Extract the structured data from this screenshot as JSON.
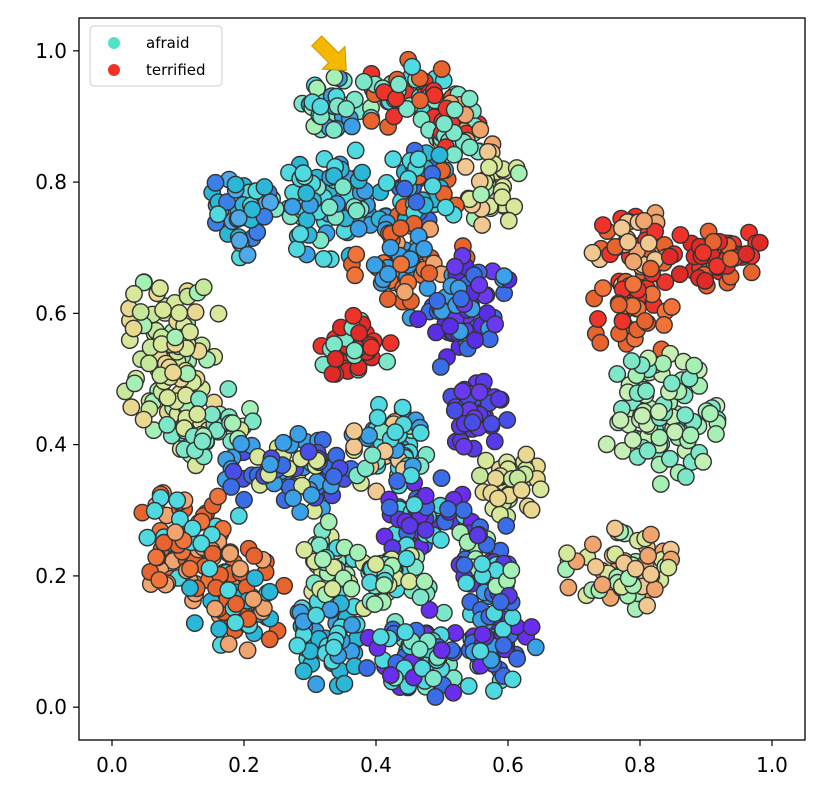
{
  "chart_data": {
    "type": "scatter",
    "title": "",
    "xlabel": "",
    "ylabel": "",
    "xlim": [
      -0.05,
      1.05
    ],
    "ylim": [
      -0.05,
      1.05
    ],
    "xticks": [
      0.0,
      0.2,
      0.4,
      0.6,
      0.8,
      1.0
    ],
    "yticks": [
      0.0,
      0.2,
      0.4,
      0.6,
      0.8,
      1.0
    ],
    "xtick_labels": [
      "0.0",
      "0.2",
      "0.4",
      "0.6",
      "0.8",
      "1.0"
    ],
    "ytick_labels": [
      "0.0",
      "0.2",
      "0.4",
      "0.6",
      "0.8",
      "1.0"
    ],
    "grid": false,
    "legend": {
      "placement": "top-left",
      "entries": [
        {
          "label": "afraid",
          "color": "#4fe3c6"
        },
        {
          "label": "terrified",
          "color": "#f0332a"
        }
      ]
    },
    "annotation": {
      "type": "arrow",
      "color": "#f5b800",
      "points_to": [
        0.355,
        0.97
      ]
    },
    "marker_edge_color": "#333333",
    "clusters": [
      {
        "cx": 0.33,
        "cy": 0.91,
        "rx": 0.05,
        "ry": 0.04,
        "n": 45,
        "colors": [
          "#4fd9e0",
          "#7de8c9",
          "#3aa0e8",
          "#a5f0b5"
        ]
      },
      {
        "cx": 0.45,
        "cy": 0.93,
        "rx": 0.06,
        "ry": 0.045,
        "n": 55,
        "colors": [
          "#f0332a",
          "#e8642e",
          "#7de8c9",
          "#4fd9e0"
        ]
      },
      {
        "cx": 0.53,
        "cy": 0.88,
        "rx": 0.04,
        "ry": 0.05,
        "n": 45,
        "colors": [
          "#f0332a",
          "#f0a46e",
          "#7de8c9"
        ]
      },
      {
        "cx": 0.57,
        "cy": 0.79,
        "rx": 0.04,
        "ry": 0.05,
        "n": 40,
        "colors": [
          "#d7e89a",
          "#a5f0b5",
          "#f0c890"
        ]
      },
      {
        "cx": 0.33,
        "cy": 0.77,
        "rx": 0.07,
        "ry": 0.07,
        "n": 90,
        "colors": [
          "#4fd9e0",
          "#3aa0e8",
          "#7de8c9",
          "#2bb8d8"
        ]
      },
      {
        "cx": 0.46,
        "cy": 0.78,
        "rx": 0.05,
        "ry": 0.06,
        "n": 55,
        "colors": [
          "#3a6ee8",
          "#4fd9e0",
          "#2bb8d8",
          "#e8642e"
        ]
      },
      {
        "cx": 0.19,
        "cy": 0.76,
        "rx": 0.04,
        "ry": 0.06,
        "n": 45,
        "colors": [
          "#3a80e8",
          "#4fa8e8",
          "#2bb8d8",
          "#4fd9e0"
        ]
      },
      {
        "cx": 0.45,
        "cy": 0.68,
        "rx": 0.07,
        "ry": 0.05,
        "n": 60,
        "colors": [
          "#f0733a",
          "#e8642e",
          "#f0a46e",
          "#3aa0e8"
        ]
      },
      {
        "cx": 0.53,
        "cy": 0.6,
        "rx": 0.07,
        "ry": 0.07,
        "n": 75,
        "colors": [
          "#5a2ee8",
          "#3a6ee8",
          "#6a3af0",
          "#3aa0e8"
        ]
      },
      {
        "cx": 0.79,
        "cy": 0.7,
        "rx": 0.05,
        "ry": 0.05,
        "n": 50,
        "colors": [
          "#f0c890",
          "#f0a46e",
          "#e8642e",
          "#f0332a"
        ]
      },
      {
        "cx": 0.92,
        "cy": 0.69,
        "rx": 0.06,
        "ry": 0.04,
        "n": 45,
        "colors": [
          "#f0332a",
          "#e02a28",
          "#e8642e"
        ]
      },
      {
        "cx": 0.79,
        "cy": 0.6,
        "rx": 0.05,
        "ry": 0.06,
        "n": 45,
        "colors": [
          "#e8642e",
          "#f0332a",
          "#f0733a"
        ]
      },
      {
        "cx": 0.09,
        "cy": 0.54,
        "rx": 0.065,
        "ry": 0.1,
        "n": 110,
        "colors": [
          "#d7e89a",
          "#c5e89a",
          "#a5f0b5",
          "#e8d890"
        ]
      },
      {
        "cx": 0.14,
        "cy": 0.43,
        "rx": 0.06,
        "ry": 0.05,
        "n": 50,
        "colors": [
          "#a5f0b5",
          "#d7e89a",
          "#7de8c9"
        ]
      },
      {
        "cx": 0.36,
        "cy": 0.55,
        "rx": 0.05,
        "ry": 0.045,
        "n": 50,
        "colors": [
          "#f0332a",
          "#e02a28",
          "#7de8c9"
        ]
      },
      {
        "cx": 0.55,
        "cy": 0.45,
        "rx": 0.04,
        "ry": 0.045,
        "n": 45,
        "colors": [
          "#5a3ae8",
          "#4a4ee8",
          "#6a3af0"
        ]
      },
      {
        "cx": 0.83,
        "cy": 0.44,
        "rx": 0.07,
        "ry": 0.08,
        "n": 95,
        "colors": [
          "#a5f0b5",
          "#7de8c9",
          "#c5f0b5"
        ]
      },
      {
        "cx": 0.28,
        "cy": 0.36,
        "rx": 0.09,
        "ry": 0.05,
        "n": 80,
        "colors": [
          "#3a6ee8",
          "#4a4ee8",
          "#d7e89a",
          "#3aa0e8"
        ]
      },
      {
        "cx": 0.42,
        "cy": 0.4,
        "rx": 0.05,
        "ry": 0.06,
        "n": 55,
        "colors": [
          "#4fd9e0",
          "#7de8c9",
          "#3aa0e8",
          "#f0c890"
        ]
      },
      {
        "cx": 0.47,
        "cy": 0.28,
        "rx": 0.06,
        "ry": 0.06,
        "n": 65,
        "colors": [
          "#6a2ef0",
          "#5a3ae8",
          "#4fd9e0",
          "#3a6ee8"
        ]
      },
      {
        "cx": 0.6,
        "cy": 0.34,
        "rx": 0.04,
        "ry": 0.045,
        "n": 40,
        "colors": [
          "#d7e89a",
          "#e8d890",
          "#c5e89a"
        ]
      },
      {
        "cx": 0.12,
        "cy": 0.25,
        "rx": 0.07,
        "ry": 0.07,
        "n": 85,
        "colors": [
          "#f0a46e",
          "#f0733a",
          "#4fd9e0",
          "#e8642e"
        ]
      },
      {
        "cx": 0.19,
        "cy": 0.16,
        "rx": 0.06,
        "ry": 0.06,
        "n": 60,
        "colors": [
          "#f0a46e",
          "#e8642e",
          "#4fd9e0",
          "#2bb8d8"
        ]
      },
      {
        "cx": 0.33,
        "cy": 0.22,
        "rx": 0.045,
        "ry": 0.05,
        "n": 40,
        "colors": [
          "#a5f0b5",
          "#d7e89a",
          "#7de8c9",
          "#4fd9e0"
        ]
      },
      {
        "cx": 0.33,
        "cy": 0.1,
        "rx": 0.05,
        "ry": 0.055,
        "n": 55,
        "colors": [
          "#2bb8d8",
          "#4fd9e0",
          "#3aa0e8"
        ]
      },
      {
        "cx": 0.47,
        "cy": 0.08,
        "rx": 0.07,
        "ry": 0.055,
        "n": 75,
        "colors": [
          "#4fd9e0",
          "#3a6ee8",
          "#7de8c9",
          "#6a2ef0"
        ]
      },
      {
        "cx": 0.58,
        "cy": 0.1,
        "rx": 0.05,
        "ry": 0.07,
        "n": 65,
        "colors": [
          "#3aa0e8",
          "#6a2ef0",
          "#4fd9e0",
          "#3a6ee8"
        ]
      },
      {
        "cx": 0.42,
        "cy": 0.2,
        "rx": 0.05,
        "ry": 0.05,
        "n": 45,
        "colors": [
          "#7de8c9",
          "#a5f0b5",
          "#4fd9e0",
          "#d7e89a"
        ]
      },
      {
        "cx": 0.57,
        "cy": 0.22,
        "rx": 0.05,
        "ry": 0.05,
        "n": 45,
        "colors": [
          "#3a6ee8",
          "#a5f0b5",
          "#5a3ae8",
          "#4fd9e0"
        ]
      },
      {
        "cx": 0.77,
        "cy": 0.21,
        "rx": 0.07,
        "ry": 0.05,
        "n": 70,
        "colors": [
          "#f0a46e",
          "#d7e89a",
          "#a5f0b5",
          "#f0c890"
        ]
      }
    ]
  }
}
